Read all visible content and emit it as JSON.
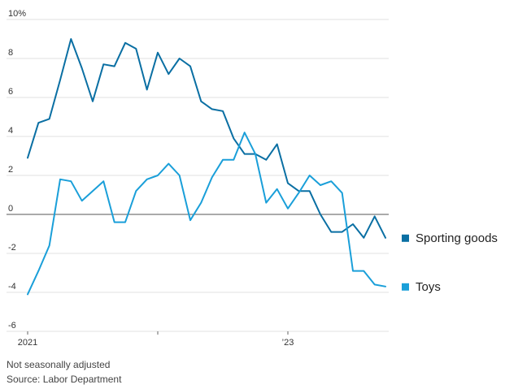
{
  "chart_data": {
    "type": "line",
    "ylim": [
      -6,
      10
    ],
    "y_ticks": [
      10,
      8,
      6,
      4,
      2,
      0,
      -2,
      -4,
      -6
    ],
    "y_tick_labels": [
      "10%",
      "8",
      "6",
      "4",
      "2",
      "0",
      "-2",
      "-4",
      "-6"
    ],
    "x_range": [
      0,
      33
    ],
    "x_ticks": [
      {
        "index": 0,
        "label": "2021"
      },
      {
        "index": 12,
        "label": ""
      },
      {
        "index": 24,
        "label": "’23"
      }
    ],
    "grid": true,
    "legend_placement": "right",
    "series": [
      {
        "name": "Sporting goods",
        "color": "#0a6fa3",
        "values": [
          2.9,
          4.7,
          4.9,
          6.9,
          9.0,
          7.5,
          5.8,
          7.7,
          7.6,
          8.8,
          8.5,
          6.4,
          8.3,
          7.2,
          8.0,
          7.6,
          5.8,
          5.4,
          5.3,
          3.9,
          3.1,
          3.1,
          2.8,
          3.6,
          1.6,
          1.2,
          1.2,
          0.0,
          -0.9,
          -0.9,
          -0.5,
          -1.2,
          -0.1,
          -1.2
        ]
      },
      {
        "name": "Toys",
        "color": "#1a9fd9",
        "values": [
          -4.1,
          -2.9,
          -1.6,
          1.8,
          1.7,
          0.7,
          1.2,
          1.7,
          -0.4,
          -0.4,
          1.2,
          1.8,
          2.0,
          2.6,
          2.0,
          -0.3,
          0.6,
          1.9,
          2.8,
          2.8,
          4.2,
          3.1,
          0.6,
          1.3,
          0.3,
          1.1,
          2.0,
          1.5,
          1.7,
          1.1,
          -2.9,
          -2.9,
          -3.6,
          -3.7
        ]
      }
    ]
  },
  "notes": {
    "line1": "Not seasonally adjusted",
    "line2": "Source: Labor Department"
  }
}
